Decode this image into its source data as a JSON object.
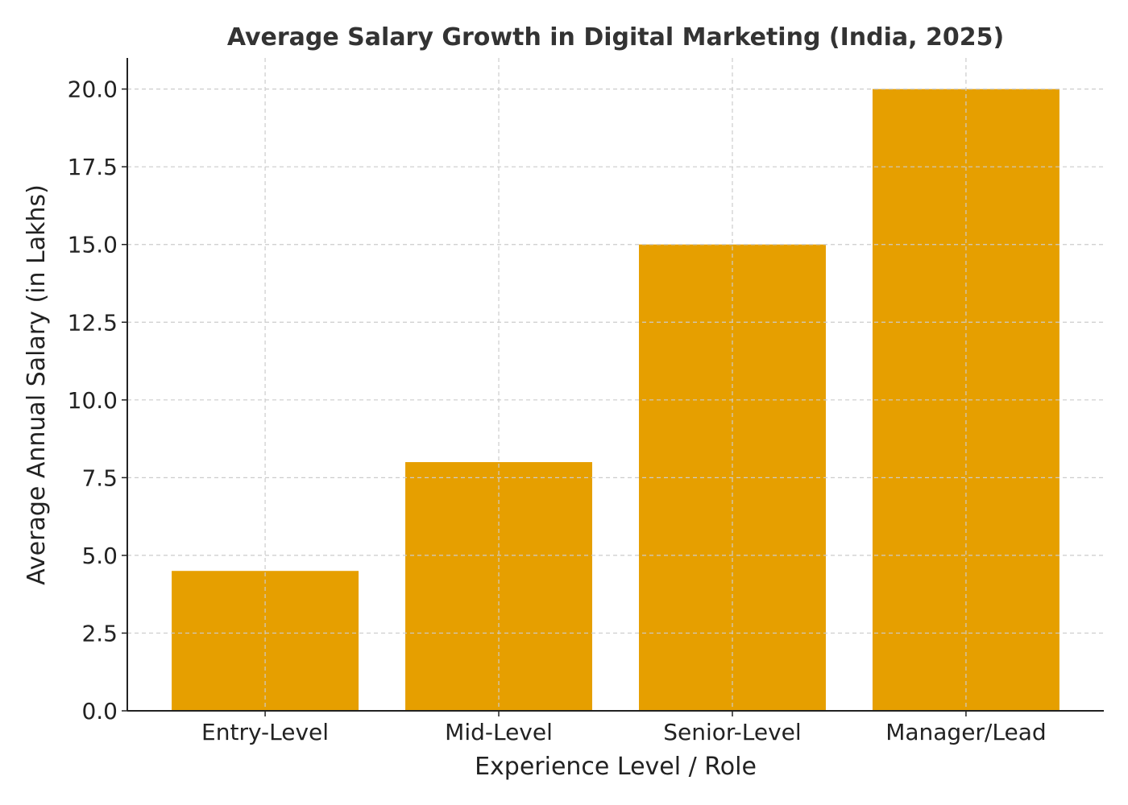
{
  "chart_data": {
    "type": "bar",
    "title": "Average Salary Growth in Digital Marketing (India, 2025)",
    "xlabel": "Experience Level / Role",
    "ylabel": "Average Annual Salary (in Lakhs)",
    "categories": [
      "Entry-Level",
      "Mid-Level",
      "Senior-Level",
      "Manager/Lead"
    ],
    "values": [
      4.5,
      8,
      15,
      20
    ],
    "ylim": [
      0,
      21
    ],
    "yticks": [
      0,
      2.5,
      5,
      7.5,
      10,
      12.5,
      15,
      17.5,
      20
    ],
    "ytick_labels": [
      "0.0",
      "2.5",
      "5.0",
      "7.5",
      "10.0",
      "12.5",
      "15.0",
      "17.5",
      "20.0"
    ],
    "grid": true,
    "bar_color": "#E69F00"
  }
}
